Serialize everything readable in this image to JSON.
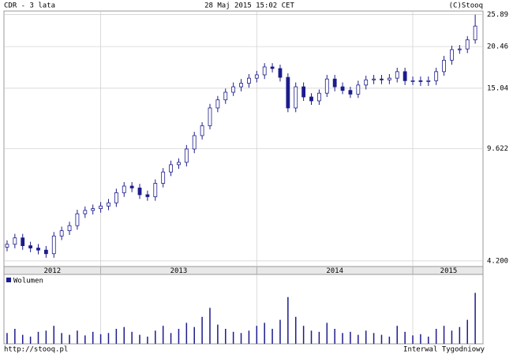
{
  "chart_data": {
    "type": "candlestick",
    "title": "CDR - 3 lata",
    "subtitle": "28 Maj 2015 15:02 CET",
    "source": "(C)Stooq",
    "footer_left": "http://stooq.pl",
    "footer_right": "Interwal Tygodniowy",
    "color": "#1c1c8c",
    "log_scale": true,
    "grid": true,
    "x": [
      2012.4,
      2012.45,
      2012.5,
      2012.55,
      2012.6,
      2012.65,
      2012.7,
      2012.75,
      2012.8,
      2012.85,
      2012.9,
      2012.95,
      2013.0,
      2013.05,
      2013.1,
      2013.15,
      2013.2,
      2013.25,
      2013.3,
      2013.35,
      2013.4,
      2013.45,
      2013.5,
      2013.55,
      2013.6,
      2013.65,
      2013.7,
      2013.75,
      2013.8,
      2013.85,
      2013.9,
      2013.95,
      2014.0,
      2014.05,
      2014.1,
      2014.15,
      2014.2,
      2014.25,
      2014.3,
      2014.35,
      2014.4,
      2014.45,
      2014.5,
      2014.55,
      2014.6,
      2014.65,
      2014.7,
      2014.75,
      2014.8,
      2014.85,
      2014.9,
      2014.95,
      2015.0,
      2015.05,
      2015.1,
      2015.15,
      2015.2,
      2015.25,
      2015.3,
      2015.35,
      2015.4
    ],
    "open": [
      4.65,
      4.75,
      4.98,
      4.7,
      4.62,
      4.55,
      4.43,
      5.05,
      5.25,
      5.45,
      5.95,
      6.1,
      6.18,
      6.3,
      6.45,
      6.95,
      7.3,
      7.2,
      6.85,
      6.75,
      7.45,
      8.1,
      8.55,
      8.7,
      9.6,
      10.6,
      11.4,
      13.0,
      13.8,
      14.6,
      15.2,
      15.6,
      16.2,
      16.6,
      17.6,
      17.4,
      16.3,
      13.0,
      15.2,
      14.1,
      13.7,
      14.5,
      16.1,
      15.2,
      14.8,
      14.4,
      15.4,
      16.0,
      16.1,
      16.0,
      16.2,
      17.0,
      15.9,
      15.9,
      15.8,
      15.9,
      17.0,
      18.5,
      20.0,
      20.1,
      21.5
    ],
    "high": [
      4.89,
      5.13,
      5.13,
      4.84,
      4.76,
      4.69,
      5.2,
      5.41,
      5.61,
      6.13,
      6.28,
      6.37,
      6.49,
      6.64,
      7.16,
      7.52,
      7.52,
      7.42,
      7.06,
      7.67,
      8.34,
      8.81,
      8.96,
      9.89,
      10.9,
      11.7,
      13.4,
      14.2,
      15.0,
      15.7,
      16.1,
      16.7,
      17.1,
      18.1,
      18.1,
      17.9,
      16.8,
      15.7,
      15.7,
      14.5,
      14.9,
      16.6,
      16.6,
      15.7,
      15.2,
      15.9,
      16.5,
      16.6,
      16.6,
      16.7,
      17.5,
      17.5,
      16.4,
      16.4,
      16.4,
      17.5,
      19.1,
      20.6,
      20.7,
      22.1,
      25.9
    ],
    "low": [
      4.51,
      4.61,
      4.56,
      4.48,
      4.41,
      4.3,
      4.3,
      4.9,
      5.09,
      5.29,
      5.77,
      5.92,
      6.0,
      6.11,
      6.26,
      6.74,
      6.98,
      6.64,
      6.55,
      6.55,
      7.23,
      7.86,
      8.29,
      8.44,
      9.31,
      10.3,
      11.1,
      12.6,
      13.4,
      14.2,
      14.7,
      15.1,
      15.7,
      16.1,
      16.9,
      15.8,
      12.6,
      12.6,
      13.7,
      13.3,
      13.3,
      14.1,
      14.7,
      14.4,
      14.0,
      14.0,
      14.9,
      15.5,
      15.5,
      15.5,
      15.7,
      15.4,
      15.4,
      15.3,
      15.3,
      15.4,
      16.5,
      17.9,
      19.4,
      19.5,
      20.9
    ],
    "close": [
      4.75,
      4.98,
      4.7,
      4.62,
      4.55,
      4.43,
      5.05,
      5.25,
      5.45,
      5.95,
      6.1,
      6.18,
      6.3,
      6.45,
      6.95,
      7.3,
      7.2,
      6.85,
      6.75,
      7.45,
      8.1,
      8.55,
      8.7,
      9.6,
      10.6,
      11.4,
      13.0,
      13.8,
      14.6,
      15.2,
      15.6,
      16.2,
      16.6,
      17.6,
      17.4,
      16.3,
      13.0,
      15.2,
      14.1,
      13.7,
      14.5,
      16.1,
      15.2,
      14.8,
      14.4,
      15.4,
      16.0,
      16.1,
      16.0,
      16.2,
      17.0,
      15.9,
      15.9,
      15.8,
      15.9,
      17.0,
      18.5,
      20.0,
      20.1,
      21.5,
      23.8
    ],
    "xlim": [
      2012.38,
      2015.45
    ],
    "xgrid": [
      2013,
      2014,
      2015
    ],
    "xticks": [
      {
        "value": 2012.69,
        "label": "2012"
      },
      {
        "value": 2013.5,
        "label": "2013"
      },
      {
        "value": 2014.5,
        "label": "2014"
      },
      {
        "value": 2015.23,
        "label": "2015"
      }
    ],
    "ylim": [
      4.03,
      26.6
    ],
    "yticks": [
      {
        "value": 4.2,
        "label": "4.200"
      },
      9.622,
      15.04,
      20.46,
      25.89
    ],
    "volume": {
      "name": "Wolumen",
      "color": "#1c1c8c",
      "ylim": [
        0,
        100
      ],
      "values": [
        18,
        25,
        15,
        12,
        20,
        22,
        30,
        18,
        15,
        22,
        14,
        20,
        16,
        18,
        25,
        28,
        20,
        15,
        12,
        22,
        30,
        18,
        25,
        35,
        28,
        45,
        60,
        32,
        25,
        20,
        18,
        22,
        30,
        35,
        25,
        40,
        78,
        45,
        30,
        22,
        20,
        35,
        25,
        18,
        20,
        15,
        22,
        18,
        15,
        12,
        30,
        20,
        14,
        16,
        12,
        25,
        30,
        22,
        28,
        40,
        85
      ]
    }
  }
}
